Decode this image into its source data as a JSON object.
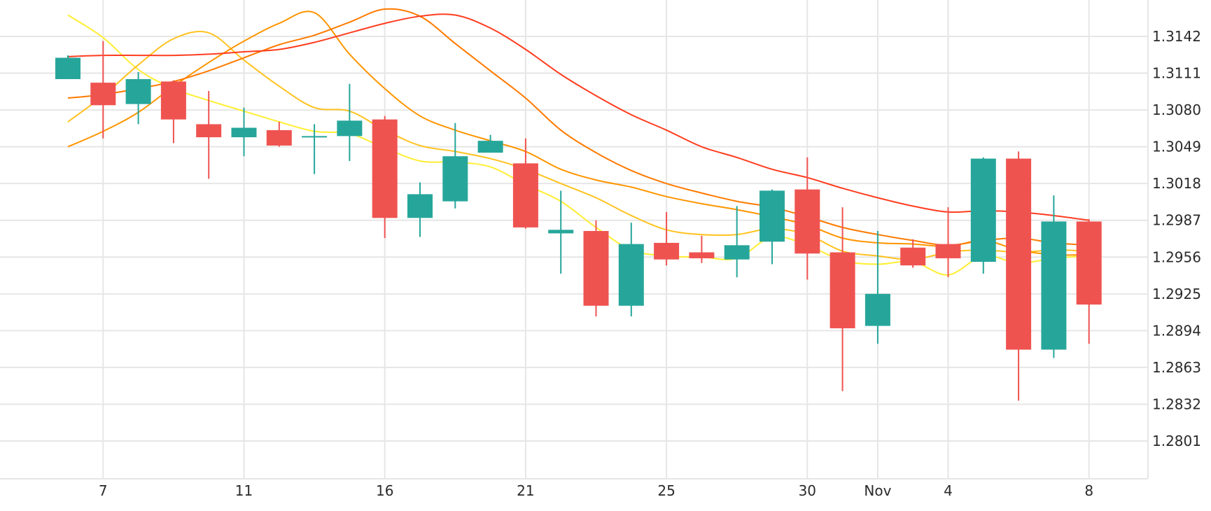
{
  "chart_data": {
    "type": "candlestick",
    "title": "",
    "xlabel": "",
    "ylabel": "",
    "ylim": [
      1.277,
      1.318
    ],
    "grid": true,
    "colors": {
      "up": "#26a69a",
      "down": "#ef5350",
      "grid": "#e6e6e6",
      "text": "#2a2a2a"
    },
    "y_ticks": [
      1.2801,
      1.2832,
      1.2863,
      1.2894,
      1.2925,
      1.2956,
      1.2987,
      1.3018,
      1.3049,
      1.308,
      1.3111,
      1.3142
    ],
    "y_tick_labels": [
      "1.2801",
      "1.2832",
      "1.2863",
      "1.2894",
      "1.2925",
      "1.2956",
      "1.2987",
      "1.3018",
      "1.3049",
      "1.3080",
      "1.3111",
      "1.3142"
    ],
    "x_ticks": [
      {
        "index": 1,
        "label": "7"
      },
      {
        "index": 5,
        "label": "11"
      },
      {
        "index": 9,
        "label": "16"
      },
      {
        "index": 13,
        "label": "21"
      },
      {
        "index": 17,
        "label": "25"
      },
      {
        "index": 21,
        "label": "30"
      },
      {
        "index": 23,
        "label": "Nov"
      },
      {
        "index": 25,
        "label": "4"
      },
      {
        "index": 29,
        "label": "8"
      }
    ],
    "candles": [
      {
        "open": 1.3106,
        "high": 1.3126,
        "low": 1.3106,
        "close": 1.3124
      },
      {
        "open": 1.3103,
        "high": 1.3138,
        "low": 1.3056,
        "close": 1.3084
      },
      {
        "open": 1.3085,
        "high": 1.3112,
        "low": 1.3068,
        "close": 1.3106
      },
      {
        "open": 1.3104,
        "high": 1.3105,
        "low": 1.3052,
        "close": 1.3072
      },
      {
        "open": 1.3068,
        "high": 1.3096,
        "low": 1.3022,
        "close": 1.3057
      },
      {
        "open": 1.3057,
        "high": 1.3082,
        "low": 1.3041,
        "close": 1.3065
      },
      {
        "open": 1.3063,
        "high": 1.307,
        "low": 1.3049,
        "close": 1.305
      },
      {
        "open": 1.3058,
        "high": 1.3068,
        "low": 1.3026,
        "close": 1.3058
      },
      {
        "open": 1.3058,
        "high": 1.3102,
        "low": 1.3037,
        "close": 1.3071
      },
      {
        "open": 1.3072,
        "high": 1.3075,
        "low": 1.2972,
        "close": 1.2989
      },
      {
        "open": 1.2989,
        "high": 1.3019,
        "low": 1.2973,
        "close": 1.3009
      },
      {
        "open": 1.3003,
        "high": 1.3069,
        "low": 1.2997,
        "close": 1.3041
      },
      {
        "open": 1.3044,
        "high": 1.3059,
        "low": 1.3044,
        "close": 1.3054
      },
      {
        "open": 1.3035,
        "high": 1.3056,
        "low": 1.298,
        "close": 1.2981
      },
      {
        "open": 1.2976,
        "high": 1.3012,
        "low": 1.2942,
        "close": 1.2979
      },
      {
        "open": 1.2978,
        "high": 1.2987,
        "low": 1.2906,
        "close": 1.2915
      },
      {
        "open": 1.2915,
        "high": 1.2985,
        "low": 1.2906,
        "close": 1.2967
      },
      {
        "open": 1.2968,
        "high": 1.2994,
        "low": 1.2949,
        "close": 1.2954
      },
      {
        "open": 1.296,
        "high": 1.2974,
        "low": 1.2951,
        "close": 1.2955
      },
      {
        "open": 1.2954,
        "high": 1.2999,
        "low": 1.2939,
        "close": 1.2966
      },
      {
        "open": 1.2969,
        "high": 1.3013,
        "low": 1.295,
        "close": 1.3012
      },
      {
        "open": 1.3013,
        "high": 1.304,
        "low": 1.2937,
        "close": 1.2959
      },
      {
        "open": 1.296,
        "high": 1.2998,
        "low": 1.2843,
        "close": 1.2896
      },
      {
        "open": 1.2898,
        "high": 1.2978,
        "low": 1.2883,
        "close": 1.2925
      },
      {
        "open": 1.2964,
        "high": 1.2971,
        "low": 1.2947,
        "close": 1.2949
      },
      {
        "open": 1.2967,
        "high": 1.2998,
        "low": 1.2939,
        "close": 1.2955
      },
      {
        "open": 1.2952,
        "high": 1.304,
        "low": 1.2942,
        "close": 1.3039
      },
      {
        "open": 1.3039,
        "high": 1.3045,
        "low": 1.2835,
        "close": 1.2878
      },
      {
        "open": 1.2878,
        "high": 1.3008,
        "low": 1.2871,
        "close": 1.2986
      },
      {
        "open": 1.2986,
        "high": 1.2988,
        "low": 1.2883,
        "close": 1.2916
      }
    ],
    "series": [
      {
        "color": "#ffee33",
        "values": [
          1.316,
          1.3141,
          1.3114,
          1.3098,
          1.3088,
          1.3079,
          1.307,
          1.3062,
          1.306,
          1.3048,
          1.3037,
          1.3036,
          1.3032,
          1.3017,
          1.3003,
          1.2981,
          1.2962,
          1.2957,
          1.2956,
          1.2955,
          1.2973,
          1.2966,
          1.2953,
          1.295,
          1.2952,
          1.2941,
          1.2957,
          1.2951,
          1.2955,
          1.2957
        ]
      },
      {
        "color": "#ffc21f",
        "values": [
          1.307,
          1.3092,
          1.3118,
          1.314,
          1.3145,
          1.3122,
          1.31,
          1.3082,
          1.3079,
          1.3063,
          1.305,
          1.3045,
          1.3039,
          1.303,
          1.3018,
          1.3006,
          1.2991,
          1.2979,
          1.2975,
          1.2975,
          1.298,
          1.2975,
          1.2961,
          1.2957,
          1.2954,
          1.296,
          1.2962,
          1.296,
          1.2962,
          1.2961
        ]
      },
      {
        "color": "#ff9500",
        "values": [
          1.3049,
          1.3062,
          1.3078,
          1.31,
          1.312,
          1.3138,
          1.3153,
          1.3162,
          1.3127,
          1.3098,
          1.3075,
          1.3063,
          1.3054,
          1.3045,
          1.303,
          1.3021,
          1.3015,
          1.3007,
          1.3001,
          1.2996,
          1.299,
          1.2983,
          1.2972,
          1.2968,
          1.2967,
          1.2965,
          1.297,
          1.2962,
          1.2958,
          1.2958
        ]
      },
      {
        "color": "#ff7a00",
        "values": [
          1.309,
          1.3093,
          1.3098,
          1.3104,
          1.3113,
          1.3124,
          1.3135,
          1.3143,
          1.3154,
          1.3165,
          1.3159,
          1.3136,
          1.3113,
          1.309,
          1.3063,
          1.3044,
          1.3029,
          1.3018,
          1.301,
          1.3003,
          1.2998,
          1.299,
          1.2981,
          1.2975,
          1.297,
          1.2966,
          1.297,
          1.2972,
          1.2968,
          1.2966
        ]
      },
      {
        "color": "#ff3d1f",
        "values": [
          1.3125,
          1.3126,
          1.3126,
          1.3126,
          1.3127,
          1.3129,
          1.3131,
          1.3137,
          1.3145,
          1.3153,
          1.3159,
          1.316,
          1.3149,
          1.3131,
          1.311,
          1.3092,
          1.3076,
          1.3063,
          1.3049,
          1.304,
          1.303,
          1.3023,
          1.3014,
          1.3006,
          1.2999,
          1.2994,
          1.2995,
          1.2994,
          1.2991,
          1.2987
        ]
      }
    ]
  }
}
